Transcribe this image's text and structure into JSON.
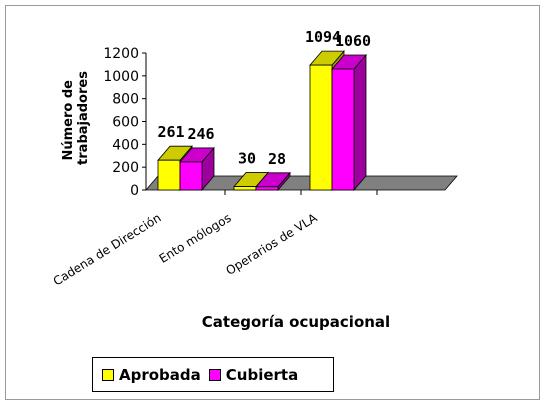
{
  "chart_data": {
    "type": "bar",
    "categories": [
      "Cadena de Dirección",
      "Ento mólogos",
      "Operarios de VLA"
    ],
    "series": [
      {
        "name": "Aprobada",
        "values": [
          261,
          30,
          1094
        ],
        "color": "#ffff00"
      },
      {
        "name": "Cubierta",
        "values": [
          246,
          28,
          1060
        ],
        "color": "#ff00ff"
      }
    ],
    "xlabel": "Categoría ocupacional",
    "ylabel": [
      "Número de",
      "trabajadores"
    ],
    "ylim": [
      0,
      1200
    ],
    "yticks": [
      0,
      200,
      400,
      600,
      800,
      1000,
      1200
    ],
    "legend_position": "bottom"
  }
}
